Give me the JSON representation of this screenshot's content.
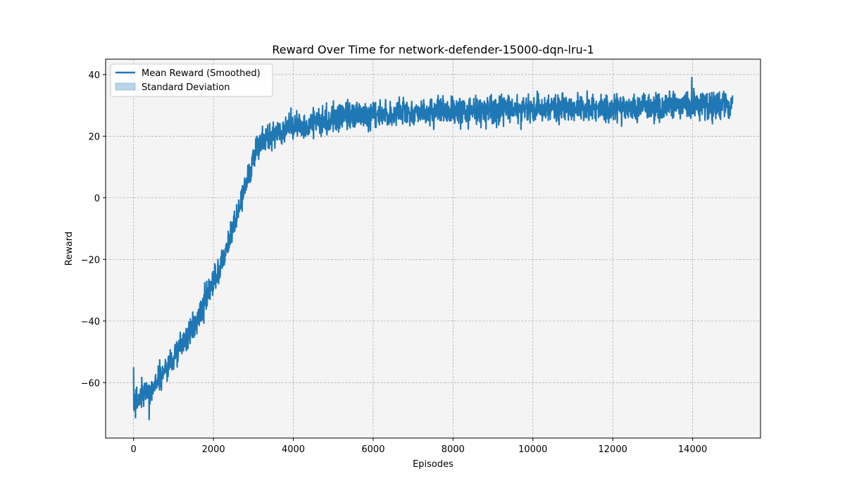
{
  "chart_data": {
    "type": "line",
    "title": "Reward Over Time for network-defender-15000-dqn-lru-1",
    "xlabel": "Episodes",
    "ylabel": "Reward",
    "xlim": [
      -700,
      15700
    ],
    "ylim": [
      -78,
      45
    ],
    "xticks": [
      0,
      2000,
      4000,
      6000,
      8000,
      10000,
      12000,
      14000
    ],
    "yticks": [
      -60,
      -40,
      -20,
      0,
      20,
      40
    ],
    "grid": true,
    "legend_position": "top-left",
    "background_color": "#f4f4f4",
    "series": [
      {
        "name": "Mean Reward (Smoothed)",
        "color": "#1f77b4",
        "trend": {
          "x": [
            0,
            500,
            1000,
            1500,
            2000,
            2500,
            2800,
            3100,
            3500,
            4000,
            5000,
            6000,
            7000,
            8000,
            9000,
            10000,
            11000,
            12000,
            13000,
            14000,
            15000
          ],
          "y": [
            -67,
            -61,
            -52,
            -42,
            -28,
            -10,
            4,
            17,
            21,
            23,
            26,
            27,
            27.5,
            28,
            28.5,
            29,
            29,
            29,
            29.5,
            30,
            30
          ]
        },
        "noise_amplitude": 3.2,
        "spike_max": 39,
        "spike_min": -72
      },
      {
        "name": "Standard Deviation",
        "color": "#1f77b4",
        "opacity": 0.3
      }
    ]
  }
}
